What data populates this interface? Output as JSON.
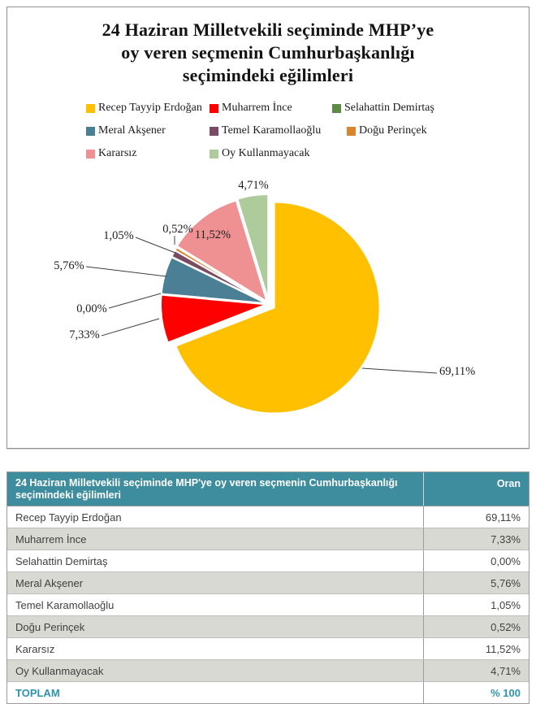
{
  "title": {
    "lines": [
      "24 Haziran Milletvekili seçiminde MHP’ye",
      "oy veren seçmenin Cumhurbaşkanlığı",
      "seçimindeki eğilimleri"
    ]
  },
  "chart_data": {
    "type": "pie",
    "title": "24 Haziran Milletvekili seçiminde MHP'ye oy veren seçmenin Cumhurbaşkanlığı seçimindeki eğilimleri",
    "categories": [
      "Recep Tayyip Erdoğan",
      "Muharrem İnce",
      "Selahattin Demirtaş",
      "Meral Akşener",
      "Temel Karamollaoğlu",
      "Doğu Perinçek",
      "Kararsız",
      "Oy Kullanmayacak"
    ],
    "values": [
      69.11,
      7.33,
      0.0,
      5.76,
      1.05,
      0.52,
      11.52,
      4.71
    ],
    "labels": [
      "69,11%",
      "7,33%",
      "0,00%",
      "5,76%",
      "1,05%",
      "0,52%",
      "11,52%",
      "4,71%"
    ],
    "colors": [
      "#FFC000",
      "#FE0000",
      "#5B8B44",
      "#4A7F95",
      "#7B4A63",
      "#D9842E",
      "#EF9193",
      "#ADCB9B"
    ],
    "legend_position": "top",
    "start_angle_deg": 0,
    "direction": "clockwise",
    "slice_stroke": "#FFFFFF"
  },
  "table": {
    "header": {
      "title": "24 Haziran Milletvekili seçiminde MHP'ye oy veren seçmenin Cumhurbaşkanlığı seçimindeki eğilimleri",
      "oran": "Oran"
    },
    "rows": [
      {
        "label": "Recep Tayyip Erdoğan",
        "value": "69,11%"
      },
      {
        "label": "Muharrem İnce",
        "value": "7,33%"
      },
      {
        "label": "Selahattin Demirtaş",
        "value": "0,00%"
      },
      {
        "label": "Meral Akşener",
        "value": "5,76%"
      },
      {
        "label": "Temel Karamollaoğlu",
        "value": "1,05%"
      },
      {
        "label": "Doğu Perinçek",
        "value": "0,52%"
      },
      {
        "label": "Kararsız",
        "value": "11,52%"
      },
      {
        "label": "Oy Kullanmayacak",
        "value": "4,71%"
      }
    ],
    "footer": {
      "label": "TOPLAM",
      "value": "% 100"
    }
  },
  "colors": {
    "table_header_bg": "#3E8D9F",
    "table_row_alt_bg": "#D9D9D4",
    "total_text": "#2E93AE",
    "card_border": "#8F8F8F"
  }
}
